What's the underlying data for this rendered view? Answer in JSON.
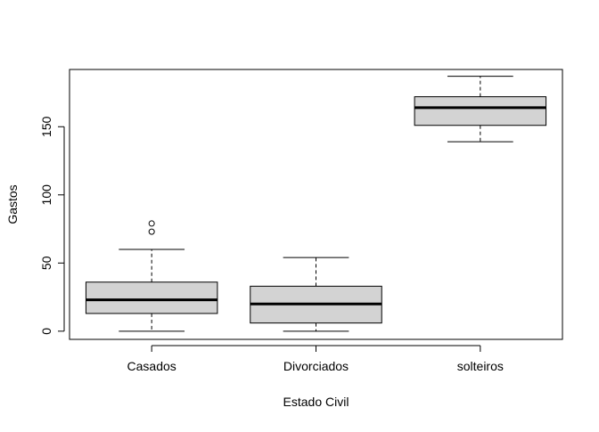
{
  "chart_data": {
    "type": "boxplot",
    "title": "",
    "xlabel": "Estado Civil",
    "ylabel": "Gastos",
    "ylim": [
      -6,
      192
    ],
    "yticks": [
      0,
      50,
      100,
      150
    ],
    "grid": false,
    "box_fill": "#d3d3d3",
    "line_color": "#000000",
    "categories": [
      "Casados",
      "Divorciados",
      "solteiros"
    ],
    "boxes": [
      {
        "min": 0,
        "q1": 13,
        "median": 23,
        "q3": 36,
        "max": 60,
        "outliers": [
          73,
          79
        ]
      },
      {
        "min": 0,
        "q1": 6,
        "median": 20,
        "q3": 33,
        "max": 54,
        "outliers": []
      },
      {
        "min": 139,
        "q1": 151,
        "median": 164,
        "q3": 172,
        "max": 187,
        "outliers": []
      }
    ]
  }
}
